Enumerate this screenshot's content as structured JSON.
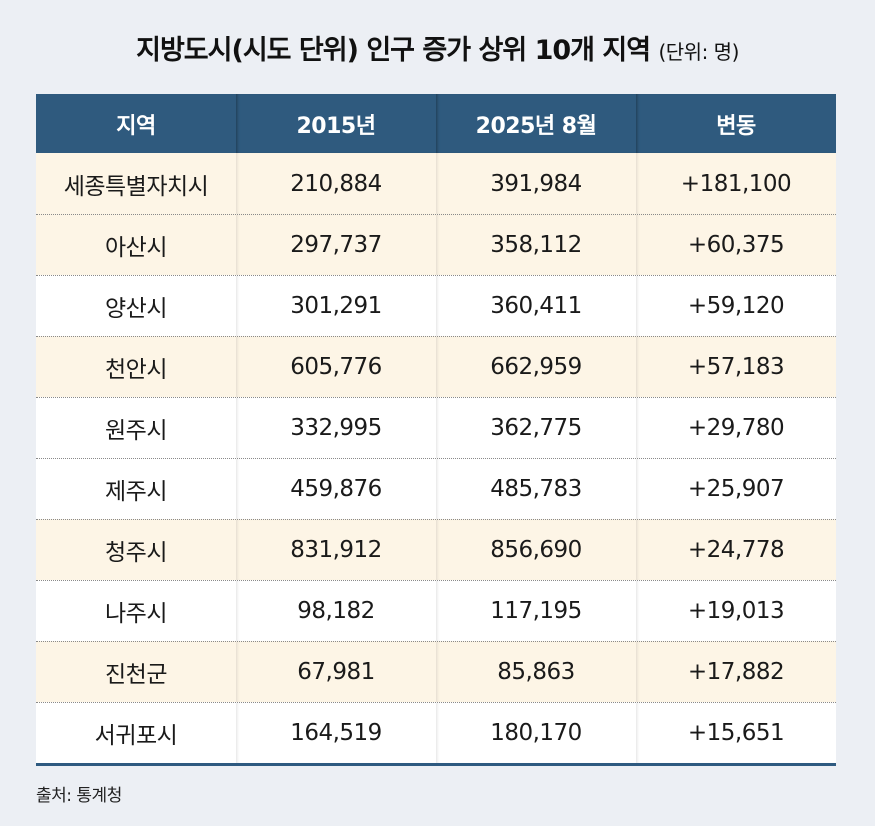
{
  "title": {
    "main": "지방도시(시도 단위) 인구 증가 상위 10개 지역",
    "unit": "(단위: 명)"
  },
  "table": {
    "headers": [
      "지역",
      "2015년",
      "2025년 8월",
      "변동"
    ],
    "rows": [
      {
        "region": "세종특별자치시",
        "y2015": "210,884",
        "y2025": "391,984",
        "change": "+181,100",
        "highlight": true
      },
      {
        "region": "아산시",
        "y2015": "297,737",
        "y2025": "358,112",
        "change": "+60,375",
        "highlight": true
      },
      {
        "region": "양산시",
        "y2015": "301,291",
        "y2025": "360,411",
        "change": "+59,120",
        "highlight": false
      },
      {
        "region": "천안시",
        "y2015": "605,776",
        "y2025": "662,959",
        "change": "+57,183",
        "highlight": true
      },
      {
        "region": "원주시",
        "y2015": "332,995",
        "y2025": "362,775",
        "change": "+29,780",
        "highlight": false
      },
      {
        "region": "제주시",
        "y2015": "459,876",
        "y2025": "485,783",
        "change": "+25,907",
        "highlight": false
      },
      {
        "region": "청주시",
        "y2015": "831,912",
        "y2025": "856,690",
        "change": "+24,778",
        "highlight": true
      },
      {
        "region": "나주시",
        "y2015": "98,182",
        "y2025": "117,195",
        "change": "+19,013",
        "highlight": false
      },
      {
        "region": "진천군",
        "y2015": "67,981",
        "y2025": "85,863",
        "change": "+17,882",
        "highlight": true
      },
      {
        "region": "서귀포시",
        "y2015": "164,519",
        "y2025": "180,170",
        "change": "+15,651",
        "highlight": false
      }
    ]
  },
  "source": "출처: 통계청",
  "colors": {
    "header_bg": "#2f5a7e",
    "highlight_row_bg": "#fdf5e6",
    "plain_row_bg": "#ffffff",
    "page_bg": "#eceff4"
  }
}
